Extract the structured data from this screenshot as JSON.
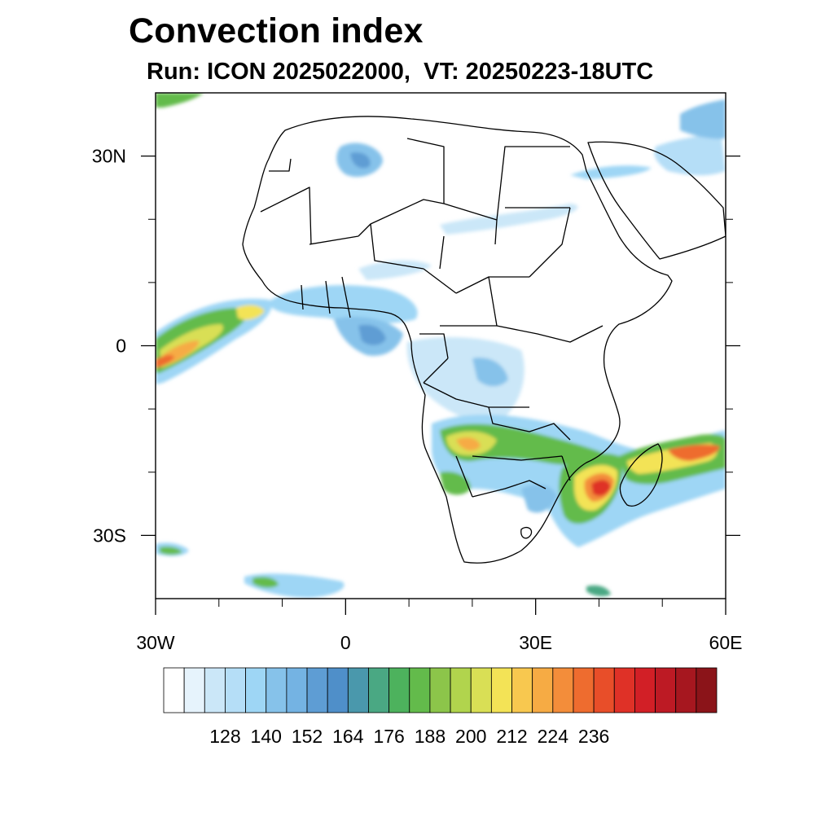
{
  "title": "Convection index",
  "subtitle": "Run: ICON 2025022000,  VT: 20250223-18UTC",
  "map": {
    "lon_range": [
      -30,
      60
    ],
    "lat_range": [
      -40,
      40
    ],
    "lat_ticks": [
      {
        "value": 30,
        "label": "30N"
      },
      {
        "value": 0,
        "label": "0"
      },
      {
        "value": -30,
        "label": "30S"
      }
    ],
    "lon_ticks": [
      {
        "value": -30,
        "label": "30W"
      },
      {
        "value": 0,
        "label": "0"
      },
      {
        "value": 30,
        "label": "30E"
      },
      {
        "value": 60,
        "label": "60E"
      }
    ],
    "minor_lon_ticks": [
      -20,
      -10,
      10,
      20,
      40,
      50
    ],
    "minor_lat_ticks": [
      20,
      10,
      -10,
      -20
    ]
  },
  "colorbar": {
    "colors": [
      "#ffffff",
      "#e6f3fc",
      "#cbe7f8",
      "#b5def7",
      "#9ed6f5",
      "#86c2ea",
      "#74b3e3",
      "#5e9dd4",
      "#4f8fc9",
      "#4a98ac",
      "#4aa883",
      "#4db25d",
      "#63bb4b",
      "#8cc54a",
      "#b1d44d",
      "#d9df55",
      "#f3e356",
      "#f8c84f",
      "#f6ab44",
      "#f38d3a",
      "#ee6c2f",
      "#e84e29",
      "#df3127",
      "#d21f26",
      "#bd1a24",
      "#a6171f",
      "#8b1419"
    ],
    "tick_labels": [
      "128",
      "140",
      "152",
      "164",
      "176",
      "188",
      "200",
      "212",
      "224",
      "236"
    ]
  }
}
